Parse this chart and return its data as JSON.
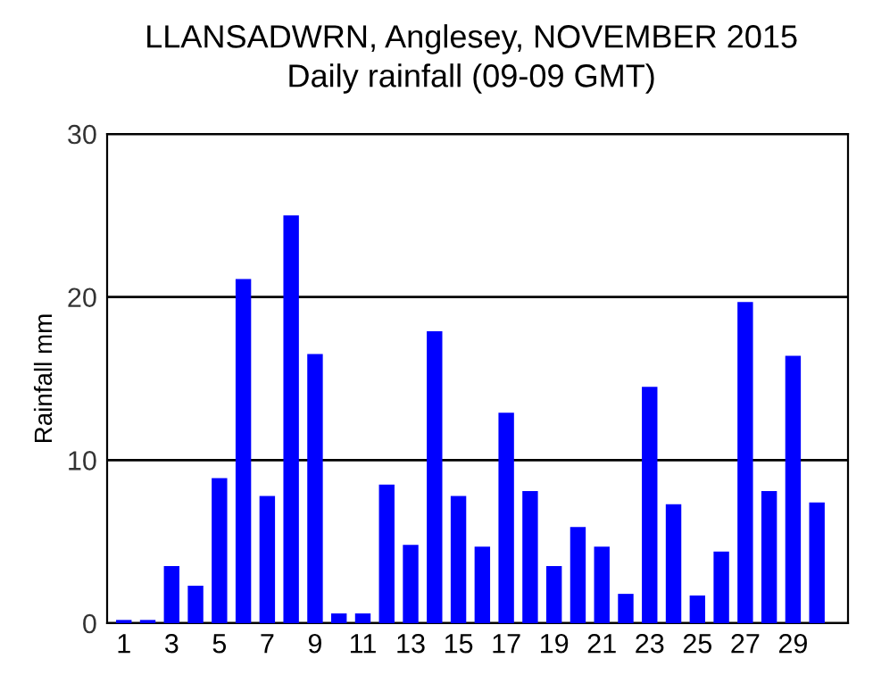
{
  "chart_data": {
    "type": "bar",
    "title": "LLANSADWRN, Anglesey, NOVEMBER 2015",
    "subtitle": "Daily rainfall (09-09 GMT)",
    "ylabel": "Rainfall mm",
    "categories": [
      "1",
      null,
      "3",
      null,
      "5",
      null,
      "7",
      null,
      "9",
      null,
      "11",
      null,
      "13",
      null,
      "15",
      null,
      "17",
      null,
      "19",
      null,
      "21",
      null,
      "23",
      null,
      "25",
      null,
      "27",
      null,
      "29",
      null
    ],
    "values": [
      0.2,
      0.2,
      3.5,
      2.3,
      8.9,
      21.1,
      7.8,
      25.0,
      16.5,
      0.6,
      0.6,
      8.5,
      4.8,
      17.9,
      7.8,
      4.7,
      12.9,
      8.1,
      3.5,
      5.9,
      4.7,
      1.8,
      14.5,
      7.3,
      1.7,
      4.4,
      19.7,
      8.1,
      16.4,
      7.4
    ],
    "color": "#0000ff",
    "ylim": [
      0,
      30
    ],
    "yticks": [
      0,
      10,
      20,
      30
    ],
    "grid": "y"
  }
}
